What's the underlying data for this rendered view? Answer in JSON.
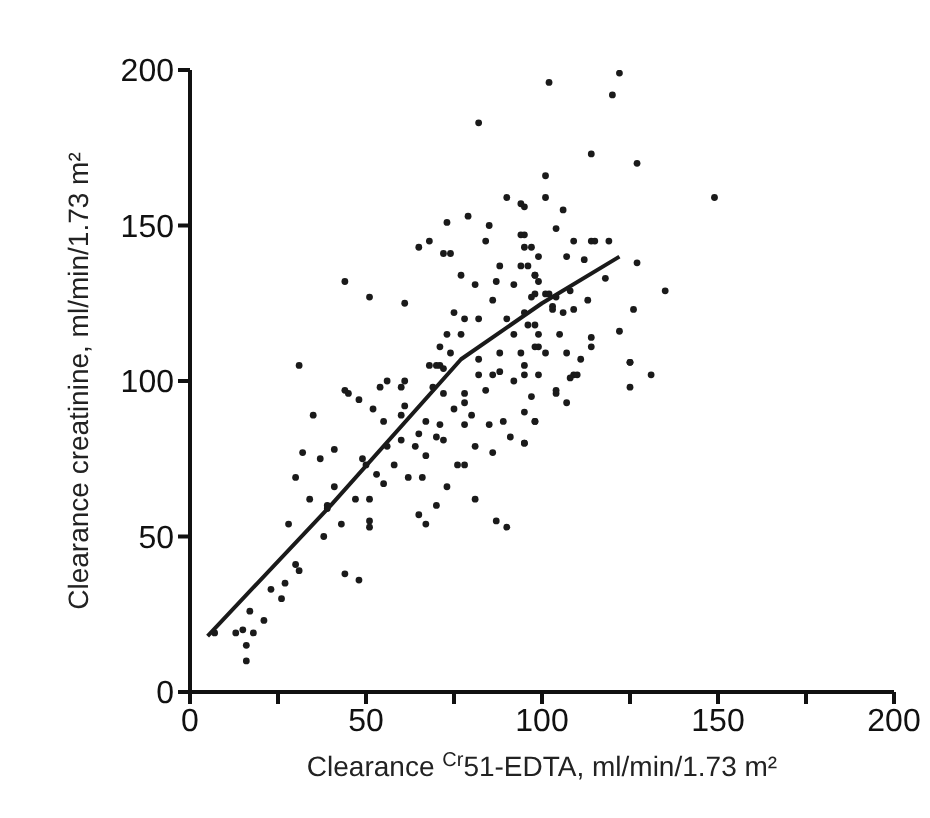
{
  "chart_data": {
    "type": "scatter",
    "xlabel": "Clearance $^{Cr}$51-EDTA, ml/min/1.73 m²",
    "ylabel": "Clearance creatinine, ml/min/1.73 m²",
    "xlim": [
      0,
      200
    ],
    "ylim": [
      0,
      200
    ],
    "xticks": [
      0,
      {
        "value": 25,
        "label": null
      },
      50,
      {
        "value": 75,
        "label": null
      },
      100,
      {
        "value": 125,
        "label": null
      },
      150,
      {
        "value": 175,
        "label": null
      },
      200
    ],
    "yticks": [
      0,
      50,
      100,
      150,
      200
    ],
    "series": [
      {
        "marker": "circle",
        "color": "#1a1a1a",
        "x": [
          102,
          82,
          101,
          90,
          101,
          94,
          73,
          79,
          85,
          68,
          65,
          72,
          74,
          44,
          51,
          61,
          31,
          84,
          94,
          95,
          122,
          120,
          114,
          127,
          106,
          104,
          109,
          114,
          115,
          119,
          127,
          135,
          126,
          122,
          125,
          131,
          114,
          114,
          111,
          109,
          107,
          112,
          118,
          149,
          125,
          125,
          110,
          108,
          104,
          107,
          97,
          95,
          98,
          95,
          35,
          32,
          37,
          41,
          30,
          34,
          28,
          39,
          43,
          38,
          30,
          31,
          44,
          48,
          23,
          27,
          26,
          17,
          21,
          13,
          15,
          18,
          16,
          16,
          7,
          51,
          51,
          51,
          47,
          41,
          39,
          49,
          50,
          53,
          55,
          58,
          62,
          66,
          65,
          67,
          70,
          73,
          81,
          87,
          90,
          76,
          78,
          67,
          56,
          60,
          64,
          65,
          70,
          72,
          81,
          86,
          91,
          95,
          85,
          89,
          98,
          78,
          75,
          80,
          67,
          71,
          60,
          61,
          52,
          55,
          48,
          45,
          44,
          54,
          60,
          61,
          69,
          72,
          78,
          78,
          84,
          92,
          95,
          104,
          82,
          88,
          68,
          71,
          56,
          77,
          81,
          88,
          94,
          87,
          92,
          98,
          98,
          86,
          75,
          78,
          82,
          73,
          77,
          71,
          74,
          70,
          72,
          90,
          92,
          95,
          98,
          88,
          94,
          99,
          82,
          86,
          103,
          101,
          95,
          95,
          97,
          99,
          96,
          98,
          102,
          97,
          99,
          104,
          108,
          103,
          106,
          109,
          113,
          96,
          99,
          105,
          98,
          101,
          107,
          95,
          99
        ],
        "values": [
          196,
          183,
          166,
          159,
          159,
          157,
          151,
          153,
          150,
          145,
          143,
          141,
          141,
          132,
          127,
          125,
          105,
          145,
          147,
          143,
          199,
          192,
          173,
          170,
          155,
          149,
          145,
          145,
          145,
          145,
          138,
          129,
          123,
          116,
          106,
          102,
          114,
          111,
          107,
          102,
          140,
          139,
          133,
          159,
          106,
          98,
          102,
          101,
          96,
          93,
          95,
          90,
          87,
          80,
          89,
          77,
          75,
          78,
          69,
          62,
          54,
          59,
          54,
          50,
          41,
          39,
          38,
          36,
          33,
          35,
          30,
          26,
          23,
          19,
          20,
          19,
          15,
          10,
          19,
          62,
          55,
          53,
          62,
          66,
          60,
          75,
          73,
          70,
          67,
          73,
          69,
          69,
          57,
          54,
          60,
          66,
          62,
          55,
          53,
          73,
          73,
          76,
          79,
          81,
          79,
          83,
          82,
          81,
          79,
          77,
          82,
          80,
          86,
          87,
          87,
          86,
          91,
          89,
          87,
          86,
          89,
          92,
          91,
          87,
          94,
          96,
          97,
          98,
          98,
          100,
          98,
          96,
          96,
          93,
          97,
          100,
          102,
          97,
          102,
          103,
          105,
          105,
          100,
          134,
          131,
          137,
          137,
          132,
          131,
          134,
          128,
          126,
          122,
          120,
          120,
          115,
          115,
          111,
          109,
          105,
          104,
          120,
          115,
          122,
          118,
          109,
          109,
          111,
          107,
          102,
          124,
          128,
          156,
          147,
          143,
          140,
          137,
          134,
          128,
          127,
          132,
          127,
          129,
          123,
          122,
          123,
          126,
          118,
          115,
          115,
          111,
          109,
          109,
          105,
          102
        ]
      },
      {
        "type": "line",
        "marker": "none",
        "color": "#1a1a1a",
        "x": [
          5,
          40,
          77,
          100,
          122
        ],
        "values": [
          18,
          60,
          107,
          125,
          140
        ]
      }
    ]
  }
}
